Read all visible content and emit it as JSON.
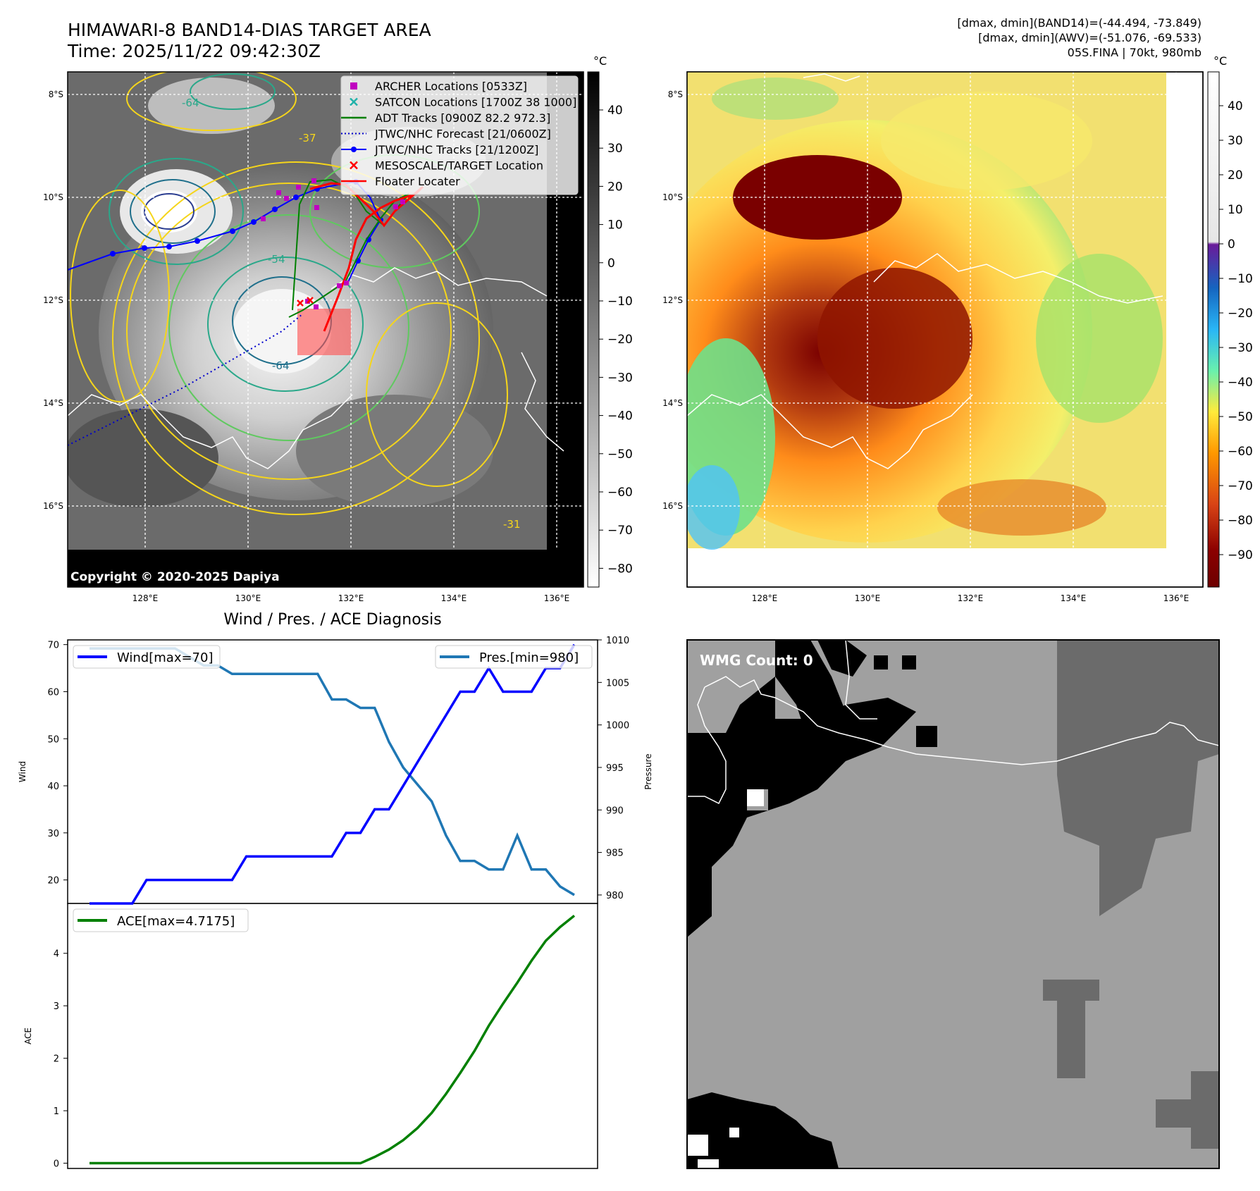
{
  "header": {
    "title_line1": "HIMAWARI-8 BAND14-DIAS TARGET AREA",
    "title_line2": "Time: 2025/11/22 09:42:30Z",
    "info_line1": "[dmax, dmin](BAND14)=(-44.494, -73.849)",
    "info_line2": "[dmax, dmin](AWV)=(-51.076, -69.533)",
    "info_line3": "05S.FINA | 70kt, 980mb"
  },
  "map_axes": {
    "lat_labels": [
      "8°S",
      "10°S",
      "12°S",
      "14°S",
      "16°S"
    ],
    "lon_labels": [
      "128°E",
      "130°E",
      "132°E",
      "134°E",
      "136°E"
    ]
  },
  "ir_panel": {
    "copyright": "Copyright © 2020-2025 Dapiya",
    "colorbar_unit": "°C",
    "colorbar_ticks": [
      "40",
      "30",
      "20",
      "10",
      "0",
      "−10",
      "−20",
      "−30",
      "−40",
      "−50",
      "−60",
      "−70",
      "−80"
    ],
    "contour_labels": [
      "-64",
      "-54",
      "-37",
      "-64",
      "-31"
    ],
    "legend": [
      {
        "label": "ARCHER Locations [0533Z]",
        "color": "#c000c0",
        "symbol": "square"
      },
      {
        "label": "SATCON Locations [1700Z 38 1000]",
        "color": "#20b2aa",
        "symbol": "x"
      },
      {
        "label": "ADT Tracks [0900Z 82.2 972.3]",
        "color": "#008000",
        "symbol": "line"
      },
      {
        "label": "JTWC/NHC Forecast [21/0600Z]",
        "color": "#0000cc",
        "symbol": "dotted"
      },
      {
        "label": "JTWC/NHC Tracks [21/1200Z]",
        "color": "#0000ff",
        "symbol": "line-dot"
      },
      {
        "label": "MESOSCALE/TARGET Location",
        "color": "#ff0000",
        "symbol": "x"
      },
      {
        "label": "Floater Locater",
        "color": "#ff0000",
        "symbol": "line"
      }
    ]
  },
  "awv_panel": {
    "colorbar_unit": "°C",
    "colorbar_ticks": [
      "40",
      "30",
      "20",
      "10",
      "0",
      "−10",
      "−20",
      "−30",
      "−40",
      "−50",
      "−60",
      "−70",
      "−80",
      "−90"
    ]
  },
  "wmg_panel": {
    "label": "WMG Count: 0"
  },
  "diag_panel": {
    "title": "Wind / Pres. / ACE Diagnosis"
  },
  "chart_data": [
    {
      "type": "line",
      "title": "Wind / Pres. / ACE Diagnosis",
      "ylabel": "Wind",
      "y2label": "Pressure",
      "ylim": [
        15,
        71
      ],
      "y2lim": [
        979,
        1010
      ],
      "yticks": [
        20,
        30,
        40,
        50,
        60,
        70
      ],
      "y2ticks": [
        980,
        985,
        990,
        995,
        1000,
        1005,
        1010
      ],
      "series": [
        {
          "name": "Wind[max=70]",
          "color": "#0000ff",
          "axis": "left",
          "values": [
            15,
            15,
            15,
            15,
            20,
            20,
            20,
            20,
            20,
            20,
            20,
            25,
            25,
            25,
            25,
            25,
            25,
            25,
            30,
            30,
            35,
            35,
            40,
            45,
            50,
            55,
            60,
            60,
            65,
            60,
            60,
            60,
            65,
            65,
            70
          ]
        },
        {
          "name": "Pres.[min=980]",
          "color": "#1f77b4",
          "axis": "right",
          "values": [
            1009,
            1009,
            1009,
            1009,
            1009,
            1009,
            1009,
            1008,
            1007,
            1007,
            1006,
            1006,
            1006,
            1006,
            1006,
            1006,
            1006,
            1003,
            1003,
            1002,
            1002,
            998,
            995,
            993,
            991,
            987,
            984,
            984,
            983,
            983,
            987,
            983,
            983,
            981,
            980
          ]
        }
      ]
    },
    {
      "type": "line",
      "title": "",
      "ylabel": "ACE",
      "ylim": [
        -0.1,
        4.95
      ],
      "yticks": [
        0,
        1,
        2,
        3,
        4
      ],
      "series": [
        {
          "name": "ACE[max=4.7175]",
          "color": "#008000",
          "values": [
            0,
            0,
            0,
            0,
            0,
            0,
            0,
            0,
            0,
            0,
            0,
            0,
            0,
            0,
            0,
            0,
            0,
            0,
            0,
            0,
            0.12,
            0.26,
            0.44,
            0.67,
            0.96,
            1.32,
            1.72,
            2.14,
            2.62,
            3.04,
            3.44,
            3.86,
            4.24,
            4.5,
            4.7175
          ]
        }
      ]
    }
  ]
}
